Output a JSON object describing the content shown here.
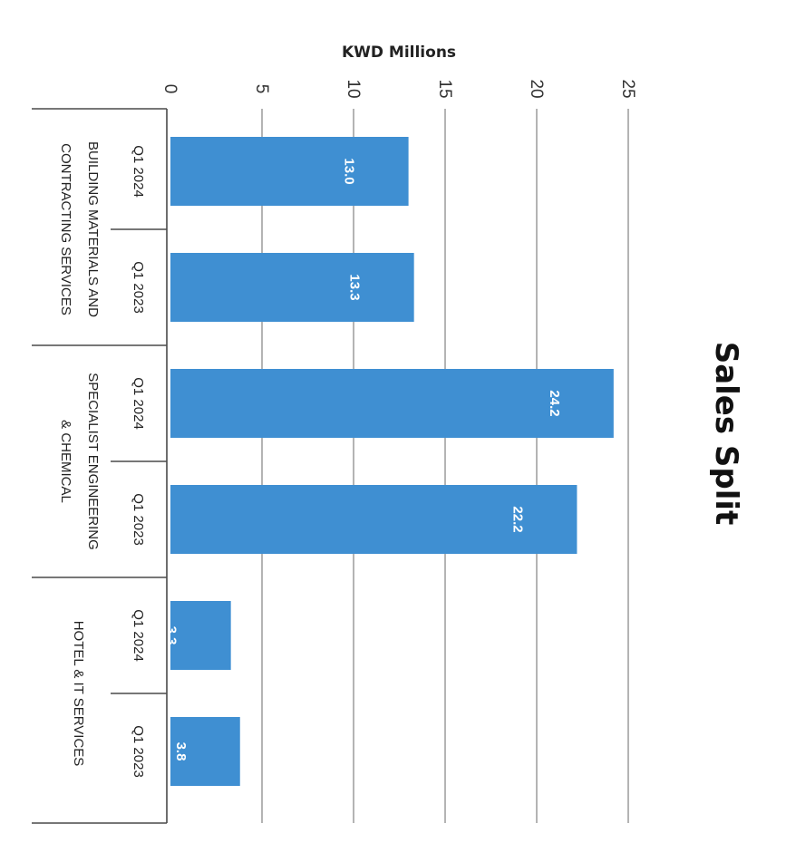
{
  "chart_data": {
    "type": "bar",
    "orientation": "vertical, page rotated 90 degrees clockwise",
    "title": "Sales Split",
    "ylabel": "KWD Millions",
    "ylim": [
      0,
      25
    ],
    "yticks": [
      "0",
      "5",
      "10",
      "15",
      "20",
      "25"
    ],
    "grid": true,
    "groups": [
      {
        "name": "BUILDING MATERIALS AND CONTRACTING SERVICES",
        "lines": [
          "BUILDING MATERIALS AND",
          "CONTRACTING SERVICES"
        ]
      },
      {
        "name": "SPECIALIST ENGINEERING & CHEMICAL",
        "lines": [
          "SPECIALIST ENGINEERING",
          "& CHEMICAL"
        ]
      },
      {
        "name": "HOTEL & IT SERVICES",
        "lines": [
          "HOTEL & IT SERVICES"
        ]
      }
    ],
    "bars": [
      {
        "group": 0,
        "period": "Q1 2024",
        "value": 13.0,
        "label": "13.0"
      },
      {
        "group": 0,
        "period": "Q1 2023",
        "value": 13.3,
        "label": "13.3"
      },
      {
        "group": 1,
        "period": "Q1 2024",
        "value": 24.2,
        "label": "24.2"
      },
      {
        "group": 1,
        "period": "Q1 2023",
        "value": 22.2,
        "label": "22.2"
      },
      {
        "group": 2,
        "period": "Q1 2024",
        "value": 3.3,
        "label": "3.3"
      },
      {
        "group": 2,
        "period": "Q1 2023",
        "value": 3.8,
        "label": "3.8"
      }
    ],
    "colors": {
      "bar": "#3f8fd2",
      "grid": "#8c8c8c",
      "background": "#ffffff"
    }
  }
}
